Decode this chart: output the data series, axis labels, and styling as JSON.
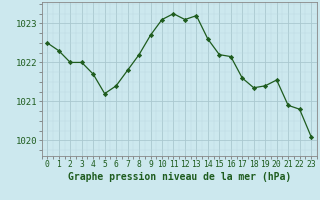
{
  "x": [
    0,
    1,
    2,
    3,
    4,
    5,
    6,
    7,
    8,
    9,
    10,
    11,
    12,
    13,
    14,
    15,
    16,
    17,
    18,
    19,
    20,
    21,
    22,
    23
  ],
  "y": [
    1022.5,
    1022.3,
    1022.0,
    1022.0,
    1021.7,
    1021.2,
    1021.4,
    1021.8,
    1022.2,
    1022.7,
    1023.1,
    1023.25,
    1023.1,
    1023.2,
    1022.6,
    1022.2,
    1022.15,
    1021.6,
    1021.35,
    1021.4,
    1021.55,
    1020.9,
    1020.8,
    1020.1
  ],
  "line_color": "#1e5c1e",
  "marker_color": "#1e5c1e",
  "bg_color": "#cce8ee",
  "grid_color_major": "#aac8d0",
  "grid_color_minor": "#bcd8e0",
  "ylabel_ticks": [
    1020,
    1021,
    1022,
    1023
  ],
  "xlabel_label": "Graphe pression niveau de la mer (hPa)",
  "xlim": [
    -0.5,
    23.5
  ],
  "ylim": [
    1019.6,
    1023.55
  ],
  "xlabel_color": "#1e5c1e",
  "tick_color": "#1e5c1e",
  "spine_color": "#888888",
  "font_size_xlabel": 7.0,
  "font_size_yticks": 6.5,
  "font_size_xticks": 5.8
}
